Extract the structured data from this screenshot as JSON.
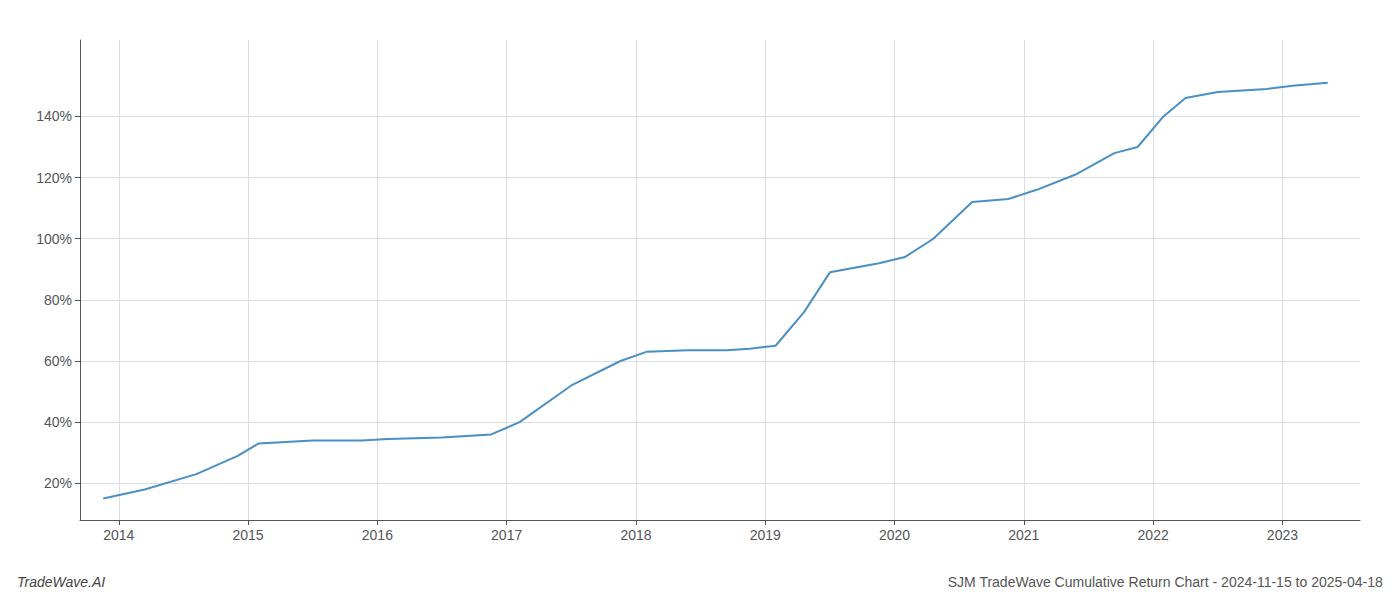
{
  "chart_data": {
    "type": "line",
    "title": "SJM TradeWave Cumulative Return Chart - 2024-11-15 to 2025-04-18",
    "annotations": [
      "TradeWave.AI"
    ],
    "x": [
      2013.88,
      2014.2,
      2014.6,
      2014.92,
      2015.08,
      2015.5,
      2015.88,
      2016.08,
      2016.5,
      2016.88,
      2017.1,
      2017.5,
      2017.88,
      2018.08,
      2018.4,
      2018.7,
      2018.88,
      2019.08,
      2019.3,
      2019.5,
      2019.88,
      2020.08,
      2020.3,
      2020.6,
      2020.88,
      2021.1,
      2021.4,
      2021.7,
      2021.88,
      2022.08,
      2022.25,
      2022.5,
      2022.88,
      2023.08,
      2023.35
    ],
    "values": [
      15,
      18,
      23,
      29,
      33,
      34,
      34,
      34.5,
      35,
      36,
      40,
      52,
      60,
      63,
      63.5,
      63.5,
      64,
      65,
      76,
      89,
      92,
      94,
      100,
      112,
      113,
      116,
      121,
      128,
      130,
      140,
      146,
      148,
      149,
      150,
      151
    ],
    "color": "#4a90c4",
    "xlim": [
      2013.7,
      2023.6
    ],
    "xticks": [
      2014,
      2015,
      2016,
      2017,
      2018,
      2019,
      2020,
      2021,
      2022,
      2023
    ],
    "ylim": [
      8,
      165
    ],
    "yticks": [
      {
        "value": 20,
        "label": "20%"
      },
      {
        "value": 40,
        "label": "40%"
      },
      {
        "value": 60,
        "label": "60%"
      },
      {
        "value": 80,
        "label": "80%"
      },
      {
        "value": 100,
        "label": "100%"
      },
      {
        "value": 120,
        "label": "120%"
      },
      {
        "value": 140,
        "label": "140%"
      }
    ],
    "grid": true
  }
}
